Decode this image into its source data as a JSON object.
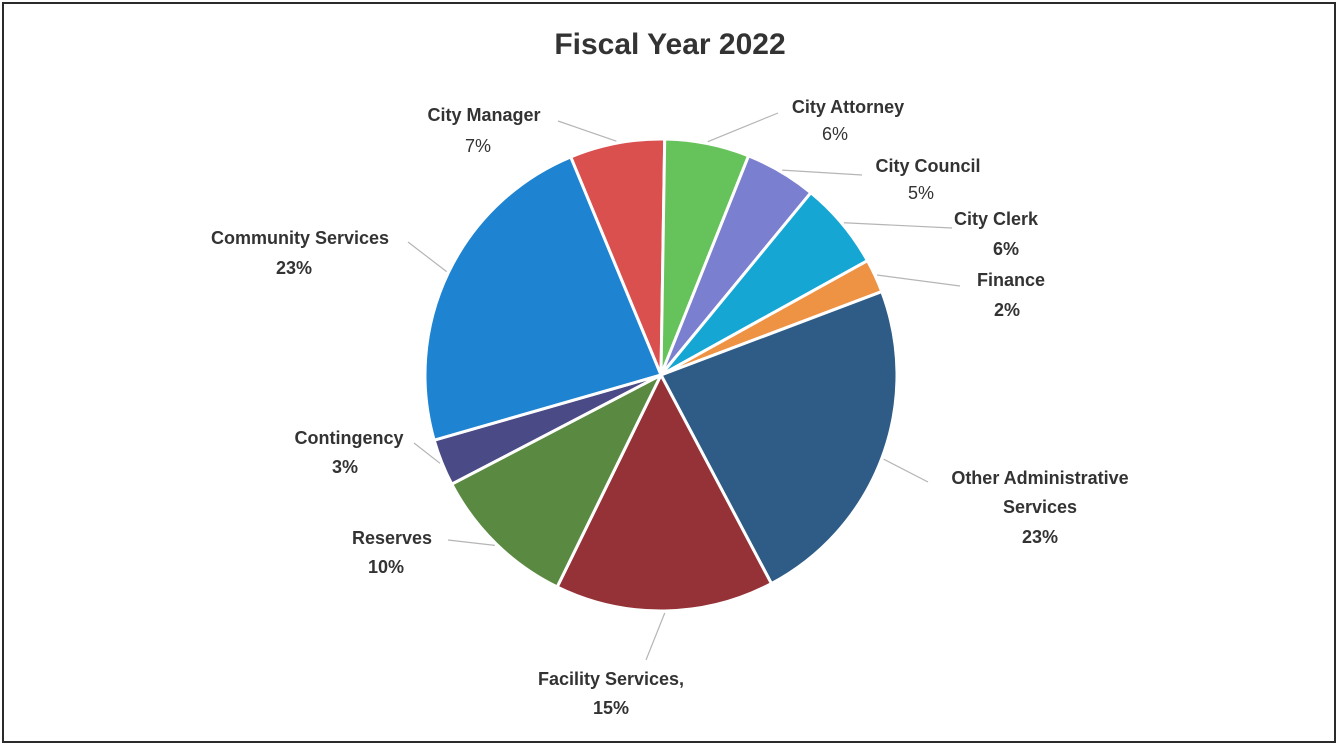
{
  "chart_data": {
    "type": "pie",
    "title": "Fiscal Year 2022",
    "slices": [
      {
        "label": "City Manager",
        "value_label": "7%",
        "value": 6.5,
        "color": "#d9504f"
      },
      {
        "label": "City Attorney",
        "value_label": "6%",
        "value": 5.8,
        "color": "#66c25a"
      },
      {
        "label": "City Council",
        "value_label": "5%",
        "value": 4.9,
        "color": "#7b7fcf"
      },
      {
        "label": "City Clerk",
        "value_label": "6%",
        "value": 6.0,
        "color": "#16a6d3"
      },
      {
        "label": "Finance",
        "value_label": "2%",
        "value": 2.3,
        "color": "#ee9243"
      },
      {
        "label": "Other Administrative Services",
        "value_label": "23%",
        "value": 23.0,
        "color": "#2e5c86"
      },
      {
        "label": "Facility Services,",
        "value_label": "15%",
        "value": 15.0,
        "color": "#953237"
      },
      {
        "label": "Reserves",
        "value_label": "10%",
        "value": 10.1,
        "color": "#5a8a41"
      },
      {
        "label": "Contingency",
        "value_label": "3%",
        "value": 3.2,
        "color": "#4a4a86"
      },
      {
        "label": "Community Services",
        "value_label": "23%",
        "value": 23.2,
        "color": "#1e83d1"
      }
    ]
  }
}
